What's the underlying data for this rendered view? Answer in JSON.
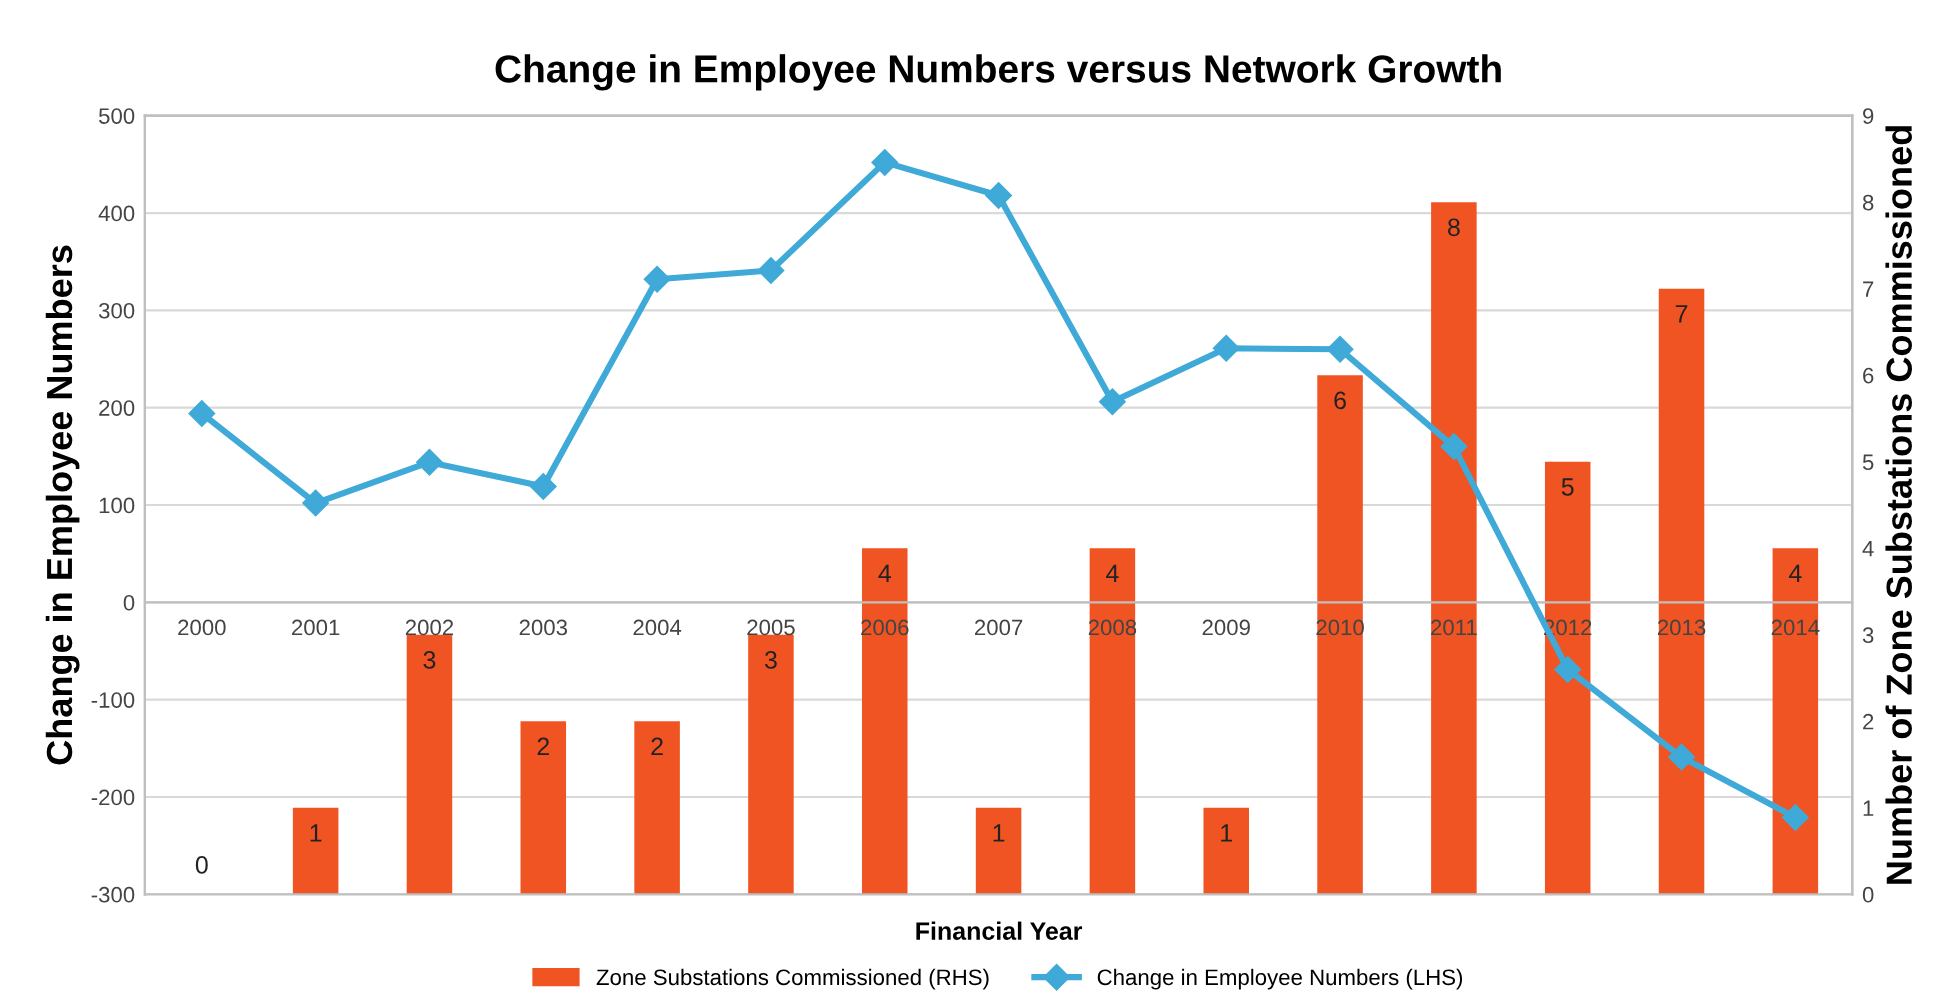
{
  "chart_data": {
    "type": "bar",
    "title": "Change in Employee Numbers versus Network Growth",
    "xlabel": "Financial Year",
    "ylabel": "Change in Employee Numbers",
    "y2label": "Number of Zone Substations Commissioned",
    "categories": [
      "2000",
      "2001",
      "2002",
      "2003",
      "2004",
      "2005",
      "2006",
      "2007",
      "2008",
      "2009",
      "2010",
      "2011",
      "2012",
      "2013",
      "2014"
    ],
    "series": [
      {
        "name": "Zone Substations Commissioned (RHS)",
        "axis": "y2",
        "color": "#f05423",
        "values": [
          0,
          1,
          3,
          2,
          2,
          3,
          4,
          1,
          4,
          1,
          6,
          8,
          5,
          7,
          4
        ],
        "value_labels": [
          "0",
          "1",
          "3",
          "2",
          "2",
          "3",
          "4",
          "1",
          "4",
          "1",
          "6",
          "8",
          "5",
          "7",
          "4"
        ]
      },
      {
        "name": "Change in Employee Numbers (LHS)",
        "type": "line",
        "color": "#3fa9d8",
        "marker": "diamond",
        "values": [
          194,
          102,
          144,
          119,
          332,
          341,
          452,
          418,
          206,
          261,
          260,
          160,
          -69,
          -159,
          -221
        ]
      }
    ],
    "ylim": [
      -300,
      500
    ],
    "yticks": [
      -300,
      -200,
      -100,
      0,
      100,
      200,
      300,
      400,
      500
    ],
    "y2lim": [
      0,
      9
    ],
    "y2ticks": [
      0,
      1,
      2,
      3,
      4,
      5,
      6,
      7,
      8,
      9
    ],
    "grid": "y",
    "legend": "bottom"
  }
}
